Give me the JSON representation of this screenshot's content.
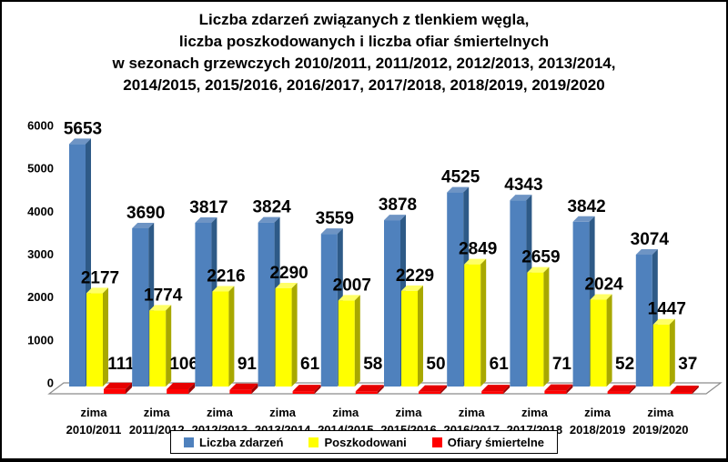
{
  "title": {
    "lines": [
      "Liczba zdarzeń związanych z tlenkiem węgla,",
      "liczba poszkodowanych i liczba ofiar śmiertelnych",
      "w sezonach grzewczych 2010/2011, 2011/2012, 2012/2013, 2013/2014,",
      "2014/2015, 2015/2016, 2016/2017, 2017/2018, 2018/2019, 2019/2020"
    ]
  },
  "chart_data": {
    "type": "bar",
    "style": "3d-clustered-column",
    "title": "Liczba zdarzeń związanych z tlenkiem węgla, liczba poszkodowanych i liczba ofiar śmiertelnych w sezonach grzewczych 2010/2011 - 2019/2020",
    "category_prefix": "zima",
    "categories": [
      "2010/2011",
      "2011/2012",
      "2012/2013",
      "2013/2014",
      "2014/2015",
      "2015/2016",
      "2016/2017",
      "2017/2018",
      "2018/2019",
      "2019/2020"
    ],
    "series": [
      {
        "name": "Liczba zdarzeń",
        "color": "#4F81BD",
        "color_side": "#2E5A87",
        "color_top": "#6E94C4",
        "values": [
          5653,
          3690,
          3817,
          3824,
          3559,
          3878,
          4525,
          4343,
          3842,
          3074
        ]
      },
      {
        "name": "Poszkodowani",
        "color": "#FFFF00",
        "color_side": "#A8A800",
        "color_top": "#FFFF66",
        "values": [
          2177,
          1774,
          2216,
          2290,
          2007,
          2229,
          2849,
          2659,
          2024,
          1447
        ]
      },
      {
        "name": "Ofiary śmiertelne",
        "color": "#FF0000",
        "color_side": "#9E0000",
        "color_top": "#E60000",
        "values": [
          111,
          106,
          91,
          61,
          58,
          50,
          61,
          71,
          52,
          37
        ]
      }
    ],
    "y_axis": {
      "min": 0,
      "max": 6000,
      "step": 1000,
      "tick_labels": [
        "0",
        "1000",
        "2000",
        "3000",
        "4000",
        "5000",
        "6000"
      ]
    },
    "grid": false,
    "data_labels": true,
    "legend_position": "bottom"
  },
  "colors": {
    "background": "#FFFFFF",
    "frame_border": "#000000",
    "text": "#000000",
    "floor_fill": "#FFFFFF",
    "floor_stroke": "#8C8C8C"
  }
}
